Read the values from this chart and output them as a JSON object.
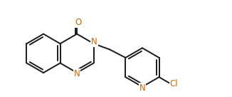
{
  "bg_color": "#ffffff",
  "bond_color": "#1a1a1a",
  "N_color": "#cc6600",
  "Cl_color": "#cc6600",
  "O_color": "#cc6600",
  "lw": 1.4,
  "font_size": 8.5,
  "xlim": [
    -0.5,
    8.5
  ],
  "ylim": [
    -1.8,
    2.2
  ]
}
